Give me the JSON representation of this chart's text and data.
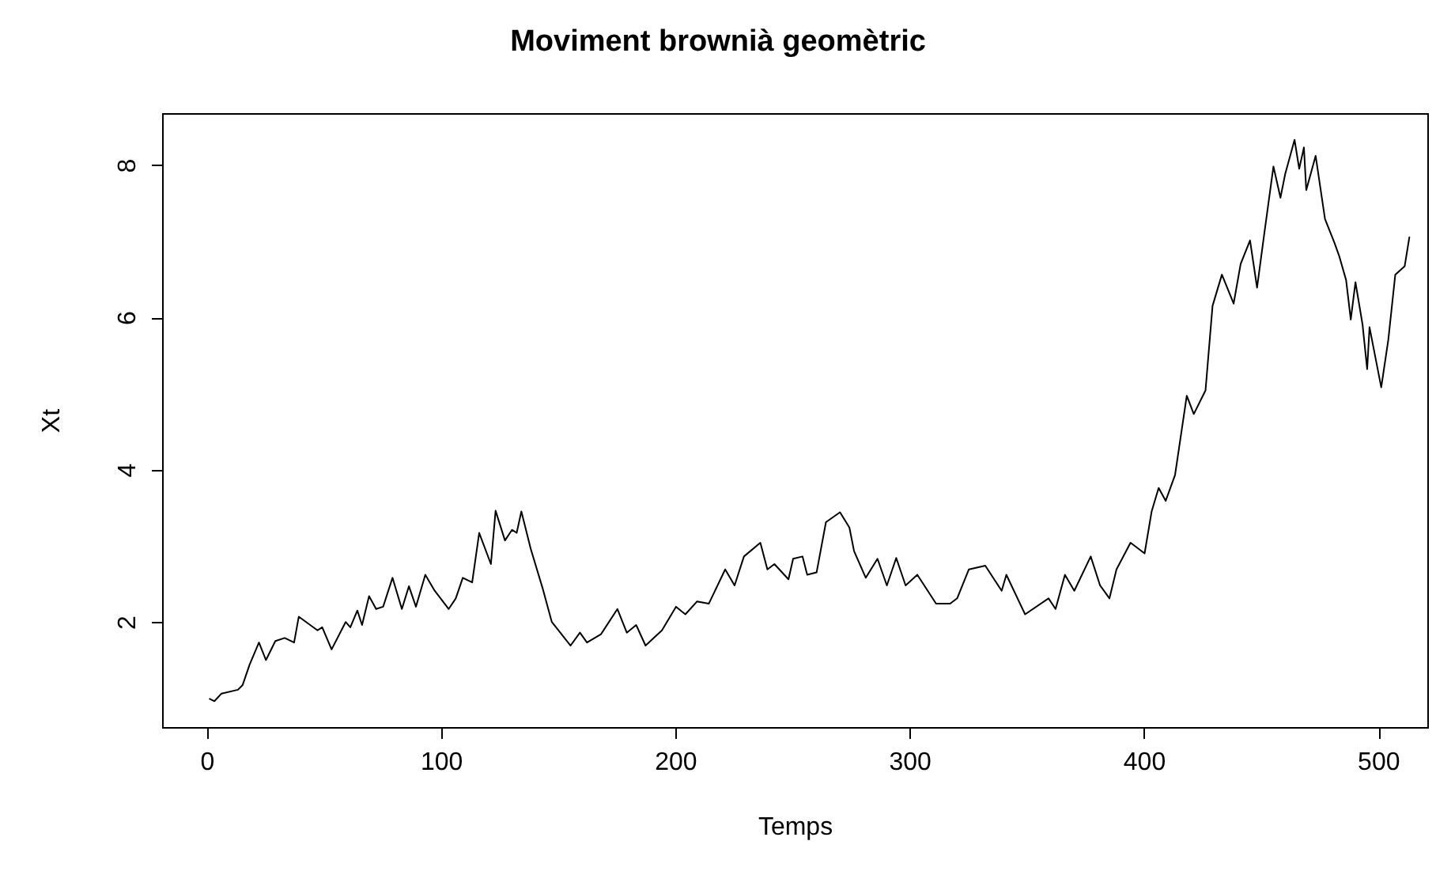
{
  "chart_data": {
    "type": "line",
    "title": "Moviment brownià geomètric",
    "xlabel": "Temps",
    "ylabel": "Xt",
    "xlim": [
      -19,
      521
    ],
    "ylim": [
      0.62,
      8.68
    ],
    "xticks": [
      0,
      100,
      200,
      300,
      400,
      500
    ],
    "yticks": [
      2,
      4,
      6,
      8
    ],
    "marker": "none",
    "line_style": "solid",
    "series": [
      {
        "color": "#000000",
        "x": [
          1,
          3,
          6,
          13,
          15,
          18,
          22,
          25,
          29,
          33,
          37,
          39,
          47,
          49,
          53,
          59,
          61,
          64,
          66,
          69,
          72,
          75,
          79,
          83,
          86,
          89,
          93,
          97,
          103,
          106,
          109,
          113,
          116,
          121,
          123,
          127,
          130,
          132,
          134,
          138,
          143,
          147,
          155,
          159,
          162,
          168,
          175,
          179,
          183,
          187,
          194,
          200,
          204,
          209,
          214,
          221,
          225,
          229,
          236,
          239,
          242,
          248,
          250,
          254,
          256,
          260,
          264,
          270,
          274,
          276,
          281,
          286,
          290,
          294,
          298,
          303,
          311,
          317,
          320,
          325,
          332,
          339,
          341,
          349,
          359,
          362,
          366,
          370,
          377,
          381,
          385,
          388,
          394,
          400,
          403,
          406,
          409,
          413,
          418,
          421,
          426,
          429,
          433,
          438,
          441,
          445,
          448,
          451,
          455,
          458,
          460,
          464,
          466,
          468,
          469,
          473,
          477,
          481,
          483,
          486,
          488,
          490,
          493,
          495,
          496,
          501,
          504,
          507,
          511,
          513
        ],
        "values": [
          1.0,
          0.97,
          1.07,
          1.12,
          1.18,
          1.45,
          1.74,
          1.51,
          1.76,
          1.8,
          1.74,
          2.08,
          1.9,
          1.94,
          1.65,
          2.01,
          1.94,
          2.16,
          1.97,
          2.35,
          2.18,
          2.21,
          2.59,
          2.18,
          2.48,
          2.21,
          2.63,
          2.42,
          2.18,
          2.32,
          2.59,
          2.53,
          3.18,
          2.77,
          3.47,
          3.08,
          3.22,
          3.18,
          3.46,
          2.97,
          2.46,
          2.01,
          1.7,
          1.87,
          1.74,
          1.85,
          2.18,
          1.87,
          1.97,
          1.7,
          1.9,
          2.21,
          2.11,
          2.28,
          2.25,
          2.7,
          2.49,
          2.87,
          3.05,
          2.7,
          2.77,
          2.57,
          2.84,
          2.87,
          2.63,
          2.66,
          3.32,
          3.45,
          3.25,
          2.94,
          2.59,
          2.84,
          2.49,
          2.85,
          2.49,
          2.63,
          2.25,
          2.25,
          2.32,
          2.7,
          2.75,
          2.42,
          2.63,
          2.11,
          2.32,
          2.18,
          2.63,
          2.42,
          2.87,
          2.49,
          2.32,
          2.7,
          3.05,
          2.91,
          3.46,
          3.77,
          3.6,
          3.94,
          4.98,
          4.74,
          5.05,
          6.16,
          6.57,
          6.19,
          6.71,
          7.02,
          6.4,
          7.09,
          7.99,
          7.58,
          7.89,
          8.34,
          7.96,
          8.24,
          7.68,
          8.13,
          7.3,
          6.99,
          6.82,
          6.5,
          5.98,
          6.47,
          5.92,
          5.33,
          5.88,
          5.09,
          5.71,
          6.57,
          6.68,
          7.06
        ]
      }
    ]
  }
}
